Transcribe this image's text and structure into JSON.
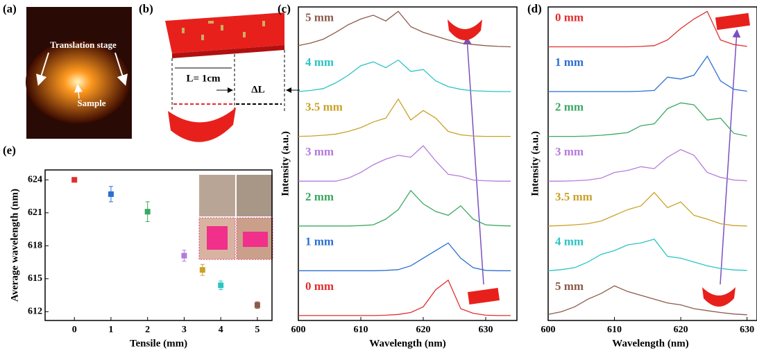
{
  "figure": {
    "a": {
      "label": "(a)",
      "annotations": [
        "Translation stage",
        "Sample"
      ]
    },
    "b": {
      "label": "(b)",
      "length": "L= 1cm",
      "delta": "ΔL"
    }
  },
  "chart_data": [
    {
      "type": "spectra",
      "label": "(c)",
      "xlabel": "Wavelength (nm)",
      "ylabel": "Intensity (a.u.)",
      "xlim": [
        600,
        635
      ],
      "xticks": [
        600,
        610,
        620,
        630
      ],
      "x": [
        600,
        602,
        604,
        606,
        608,
        610,
        612,
        614,
        616,
        618,
        620,
        622,
        624,
        626,
        628,
        630,
        632,
        634
      ],
      "series": [
        {
          "name": "5 mm",
          "color": "#8b5a4a",
          "values": [
            0.05,
            0.12,
            0.22,
            0.4,
            0.6,
            0.75,
            0.85,
            0.7,
            0.95,
            0.55,
            0.4,
            0.3,
            0.2,
            0.12,
            0.08,
            0.05,
            0.03,
            0.02
          ]
        },
        {
          "name": "4 mm",
          "color": "#2cc4c4",
          "values": [
            0.02,
            0.05,
            0.1,
            0.25,
            0.45,
            0.7,
            0.8,
            0.65,
            0.85,
            0.55,
            0.6,
            0.3,
            0.15,
            0.08,
            0.04,
            0.03,
            0.02,
            0.02
          ]
        },
        {
          "name": "3.5 mm",
          "color": "#c9a227",
          "values": [
            0.02,
            0.03,
            0.05,
            0.08,
            0.15,
            0.25,
            0.4,
            0.5,
            1.0,
            0.45,
            0.7,
            0.5,
            0.15,
            0.06,
            0.03,
            0.02,
            0.02,
            0.02
          ]
        },
        {
          "name": "3 mm",
          "color": "#b57bdc",
          "values": [
            0.02,
            0.02,
            0.02,
            0.02,
            0.1,
            0.25,
            0.45,
            0.6,
            0.7,
            0.65,
            0.95,
            0.55,
            0.2,
            0.15,
            0.05,
            0.03,
            0.02,
            0.02
          ]
        },
        {
          "name": "2 mm",
          "color": "#3aa860",
          "values": [
            0.02,
            0.02,
            0.02,
            0.02,
            0.02,
            0.03,
            0.05,
            0.2,
            0.45,
            0.95,
            0.6,
            0.4,
            0.3,
            0.55,
            0.2,
            0.05,
            0.03,
            0.02
          ]
        },
        {
          "name": "1 mm",
          "color": "#2a6fd1",
          "values": [
            0.02,
            0.02,
            0.02,
            0.02,
            0.02,
            0.02,
            0.02,
            0.03,
            0.05,
            0.15,
            0.35,
            0.55,
            0.75,
            0.35,
            0.1,
            0.03,
            0.02,
            0.02
          ]
        },
        {
          "name": "0 mm",
          "color": "#e32d2d",
          "values": [
            0.02,
            0.02,
            0.02,
            0.02,
            0.02,
            0.02,
            0.02,
            0.03,
            0.05,
            0.1,
            0.25,
            0.7,
            0.95,
            0.2,
            0.08,
            0.03,
            0.02,
            0.02
          ]
        }
      ]
    },
    {
      "type": "spectra",
      "label": "(d)",
      "xlabel": "Wavelength (nm)",
      "ylabel": "Intensity (a.u.)",
      "xlim": [
        600,
        631.5
      ],
      "xticks": [
        600,
        610,
        620,
        630
      ],
      "x": [
        600,
        602,
        604,
        606,
        608,
        610,
        612,
        614,
        616,
        618,
        620,
        622,
        624,
        626,
        628,
        630
      ],
      "series": [
        {
          "name": "0 mm",
          "color": "#e32d2d",
          "values": [
            0.02,
            0.02,
            0.02,
            0.02,
            0.02,
            0.02,
            0.02,
            0.03,
            0.05,
            0.2,
            0.5,
            0.75,
            0.95,
            0.2,
            0.08,
            0.03
          ]
        },
        {
          "name": "1 mm",
          "color": "#2a6fd1",
          "values": [
            0.02,
            0.02,
            0.02,
            0.02,
            0.02,
            0.02,
            0.02,
            0.03,
            0.05,
            0.4,
            0.35,
            0.45,
            0.95,
            0.3,
            0.08,
            0.03
          ]
        },
        {
          "name": "2 mm",
          "color": "#3aa860",
          "values": [
            0.02,
            0.02,
            0.02,
            0.03,
            0.05,
            0.08,
            0.12,
            0.3,
            0.35,
            0.75,
            0.9,
            0.85,
            0.45,
            0.5,
            0.1,
            0.03
          ]
        },
        {
          "name": "3 mm",
          "color": "#b57bdc",
          "values": [
            0.02,
            0.02,
            0.03,
            0.05,
            0.1,
            0.25,
            0.3,
            0.4,
            0.35,
            0.65,
            0.85,
            0.7,
            0.25,
            0.12,
            0.05,
            0.03
          ]
        },
        {
          "name": "3.5 mm",
          "color": "#c9a227",
          "values": [
            0.02,
            0.03,
            0.05,
            0.08,
            0.15,
            0.3,
            0.45,
            0.55,
            0.9,
            0.5,
            0.65,
            0.3,
            0.2,
            0.08,
            0.03,
            0.02
          ]
        },
        {
          "name": "4 mm",
          "color": "#2cc4c4",
          "values": [
            0.02,
            0.05,
            0.1,
            0.25,
            0.45,
            0.55,
            0.7,
            0.75,
            0.85,
            0.4,
            0.35,
            0.25,
            0.15,
            0.08,
            0.04,
            0.03
          ]
        },
        {
          "name": "5 mm",
          "color": "#8b5a4a",
          "values": [
            0.05,
            0.12,
            0.25,
            0.45,
            0.6,
            0.8,
            0.65,
            0.55,
            0.45,
            0.35,
            0.3,
            0.2,
            0.15,
            0.1,
            0.06,
            0.04
          ]
        }
      ]
    },
    {
      "type": "scatter",
      "label": "(e)",
      "xlabel": "Tensile (mm)",
      "ylabel": "Average wavelength (nm)",
      "xlim": [
        -0.8,
        5.4
      ],
      "xticks": [
        0,
        1,
        2,
        3,
        4,
        5
      ],
      "ylim": [
        611.2,
        624.9
      ],
      "yticks": [
        612,
        615,
        618,
        621,
        624
      ],
      "x": [
        0,
        1,
        2,
        3,
        3.5,
        4,
        5
      ],
      "values": [
        624.0,
        622.7,
        621.1,
        617.1,
        615.8,
        614.4,
        612.6
      ],
      "errors": [
        0.2,
        0.7,
        0.9,
        0.5,
        0.5,
        0.4,
        0.3
      ],
      "colors": [
        "#e32d2d",
        "#2a6fd1",
        "#3aa860",
        "#b57bdc",
        "#c9a227",
        "#2cc4c4",
        "#8b5a4a"
      ]
    }
  ]
}
